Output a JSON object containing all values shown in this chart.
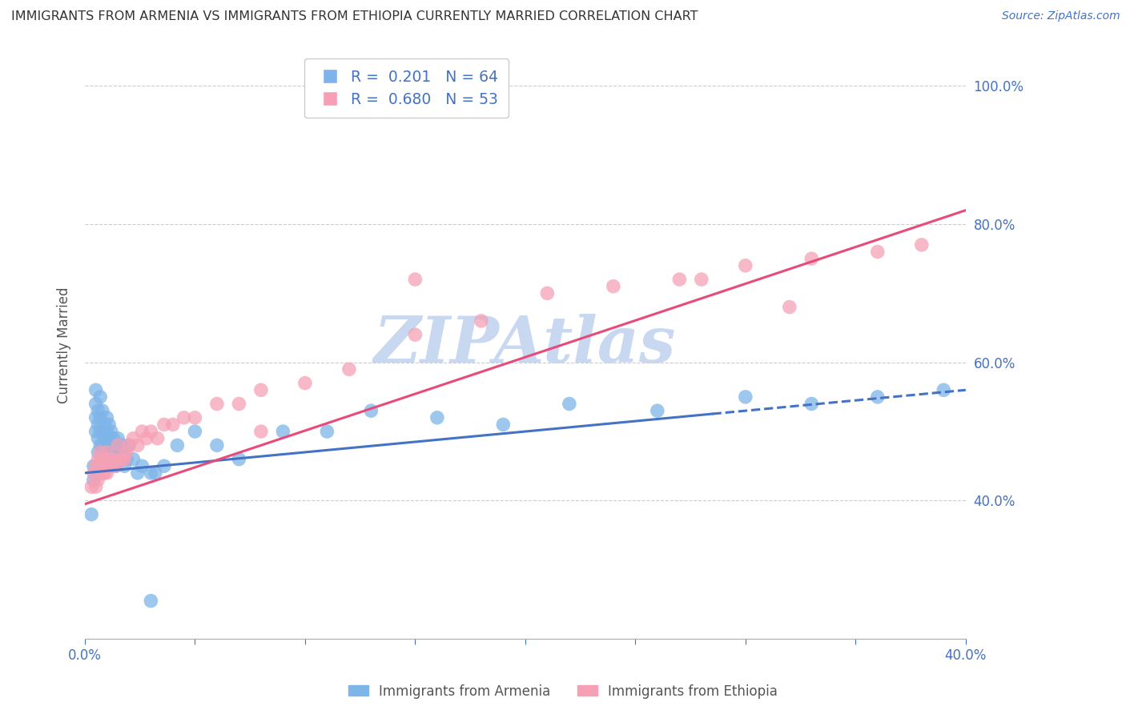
{
  "title": "IMMIGRANTS FROM ARMENIA VS IMMIGRANTS FROM ETHIOPIA CURRENTLY MARRIED CORRELATION CHART",
  "source": "Source: ZipAtlas.com",
  "ylabel": "Currently Married",
  "xmin": 0.0,
  "xmax": 0.4,
  "ymin": 0.2,
  "ymax": 1.05,
  "yticks": [
    0.4,
    0.6,
    0.8,
    1.0
  ],
  "yticklabels": [
    "40.0%",
    "60.0%",
    "80.0%",
    "100.0%"
  ],
  "xticks": [
    0.0,
    0.05,
    0.1,
    0.15,
    0.2,
    0.25,
    0.3,
    0.35,
    0.4
  ],
  "xticklabels": [
    "0.0%",
    "",
    "",
    "",
    "",
    "",
    "",
    "",
    "40.0%"
  ],
  "armenia_color": "#7EB5E8",
  "ethiopia_color": "#F5A0B5",
  "armenia_R": 0.201,
  "armenia_N": 64,
  "ethiopia_R": 0.68,
  "ethiopia_N": 53,
  "trend_armenia_color": "#4472C4",
  "trend_ethiopia_color": "#E84B7A",
  "trend_armenia_solid_end": 0.285,
  "watermark": "ZIPAtlas",
  "watermark_color": "#C8D8F0",
  "legend_label_armenia": "Immigrants from Armenia",
  "legend_label_ethiopia": "Immigrants from Ethiopia",
  "armenia_x": [
    0.003,
    0.004,
    0.004,
    0.005,
    0.005,
    0.005,
    0.005,
    0.006,
    0.006,
    0.006,
    0.006,
    0.007,
    0.007,
    0.007,
    0.007,
    0.008,
    0.008,
    0.008,
    0.008,
    0.009,
    0.009,
    0.009,
    0.01,
    0.01,
    0.01,
    0.01,
    0.011,
    0.011,
    0.011,
    0.012,
    0.012,
    0.012,
    0.013,
    0.013,
    0.014,
    0.014,
    0.015,
    0.015,
    0.016,
    0.017,
    0.018,
    0.019,
    0.02,
    0.022,
    0.024,
    0.026,
    0.03,
    0.032,
    0.036,
    0.042,
    0.05,
    0.06,
    0.07,
    0.09,
    0.11,
    0.13,
    0.16,
    0.19,
    0.22,
    0.26,
    0.3,
    0.33,
    0.36,
    0.39
  ],
  "armenia_y": [
    0.38,
    0.43,
    0.45,
    0.5,
    0.52,
    0.54,
    0.56,
    0.47,
    0.49,
    0.51,
    0.53,
    0.48,
    0.5,
    0.52,
    0.55,
    0.46,
    0.48,
    0.5,
    0.53,
    0.47,
    0.49,
    0.51,
    0.46,
    0.48,
    0.5,
    0.52,
    0.47,
    0.49,
    0.51,
    0.46,
    0.48,
    0.5,
    0.47,
    0.49,
    0.45,
    0.48,
    0.46,
    0.49,
    0.47,
    0.48,
    0.45,
    0.46,
    0.48,
    0.46,
    0.44,
    0.45,
    0.44,
    0.44,
    0.45,
    0.48,
    0.5,
    0.48,
    0.46,
    0.5,
    0.5,
    0.53,
    0.52,
    0.51,
    0.54,
    0.53,
    0.55,
    0.54,
    0.55,
    0.56
  ],
  "ethiopia_x": [
    0.003,
    0.004,
    0.005,
    0.005,
    0.006,
    0.006,
    0.007,
    0.007,
    0.008,
    0.008,
    0.009,
    0.009,
    0.01,
    0.01,
    0.011,
    0.011,
    0.012,
    0.013,
    0.014,
    0.015,
    0.016,
    0.017,
    0.018,
    0.019,
    0.02,
    0.022,
    0.024,
    0.026,
    0.028,
    0.03,
    0.033,
    0.036,
    0.04,
    0.045,
    0.05,
    0.06,
    0.07,
    0.08,
    0.1,
    0.12,
    0.15,
    0.18,
    0.21,
    0.24,
    0.27,
    0.3,
    0.33,
    0.36,
    0.38,
    0.32,
    0.28,
    0.15,
    0.08
  ],
  "ethiopia_y": [
    0.42,
    0.44,
    0.42,
    0.45,
    0.43,
    0.46,
    0.44,
    0.47,
    0.44,
    0.46,
    0.44,
    0.46,
    0.44,
    0.47,
    0.45,
    0.46,
    0.45,
    0.46,
    0.45,
    0.48,
    0.46,
    0.46,
    0.46,
    0.47,
    0.48,
    0.49,
    0.48,
    0.5,
    0.49,
    0.5,
    0.49,
    0.51,
    0.51,
    0.52,
    0.52,
    0.54,
    0.54,
    0.56,
    0.57,
    0.59,
    0.64,
    0.66,
    0.7,
    0.71,
    0.72,
    0.74,
    0.75,
    0.76,
    0.77,
    0.68,
    0.72,
    0.72,
    0.5
  ],
  "armenia_trend_x0": 0.0,
  "armenia_trend_y0": 0.44,
  "armenia_trend_x1": 0.4,
  "armenia_trend_y1": 0.56,
  "ethiopia_trend_x0": 0.0,
  "ethiopia_trend_y0": 0.395,
  "ethiopia_trend_x1": 0.4,
  "ethiopia_trend_y1": 0.82
}
